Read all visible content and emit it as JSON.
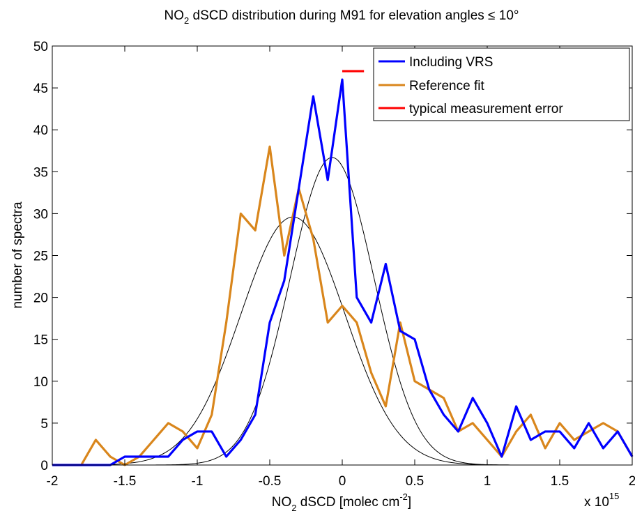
{
  "chart_data": {
    "type": "line",
    "title_main": "NO",
    "title_sub": "2",
    "title_rest": " dSCD distribution during M91 for elevation angles ≤ 10°",
    "xlabel_main": "NO",
    "xlabel_sub": "2",
    "xlabel_rest": " dSCD [molec cm",
    "xlabel_sup": "-2",
    "xlabel_end": "]",
    "x_multiplier_base": "x 10",
    "x_multiplier_exp": "15",
    "ylabel": "number of spectra",
    "xlim": [
      -2,
      2
    ],
    "ylim": [
      0,
      50
    ],
    "xticks": [
      -2,
      -1.5,
      -1,
      -0.5,
      0,
      0.5,
      1,
      1.5,
      2
    ],
    "xtick_labels": [
      "-2",
      "-1.5",
      "-1",
      "-0.5",
      "0",
      "0.5",
      "1",
      "1.5",
      "2"
    ],
    "yticks": [
      0,
      5,
      10,
      15,
      20,
      25,
      30,
      35,
      40,
      45,
      50
    ],
    "ytick_labels": [
      "0",
      "5",
      "10",
      "15",
      "20",
      "25",
      "30",
      "35",
      "40",
      "45",
      "50"
    ],
    "grid": false,
    "legend_position": "top-right",
    "series": [
      {
        "name": "Including VRS",
        "color": "#0000ff",
        "x": [
          -2.0,
          -1.9,
          -1.8,
          -1.7,
          -1.6,
          -1.5,
          -1.4,
          -1.3,
          -1.2,
          -1.1,
          -1.0,
          -0.9,
          -0.8,
          -0.7,
          -0.6,
          -0.5,
          -0.4,
          -0.3,
          -0.2,
          -0.1,
          0.0,
          0.1,
          0.2,
          0.3,
          0.4,
          0.5,
          0.6,
          0.7,
          0.8,
          0.9,
          1.0,
          1.1,
          1.2,
          1.3,
          1.4,
          1.5,
          1.6,
          1.7,
          1.8,
          1.9,
          2.0
        ],
        "y": [
          0,
          0,
          0,
          0,
          0,
          1,
          1,
          1,
          1,
          3,
          4,
          4,
          1,
          3,
          6,
          17,
          22,
          33,
          44,
          34,
          46,
          20,
          17,
          24,
          16,
          15,
          9,
          6,
          4,
          8,
          5,
          1,
          7,
          3,
          4,
          4,
          2,
          5,
          2,
          4,
          1
        ]
      },
      {
        "name": "Reference fit",
        "color": "#d9861c",
        "x": [
          -2.0,
          -1.9,
          -1.8,
          -1.7,
          -1.6,
          -1.5,
          -1.4,
          -1.3,
          -1.2,
          -1.1,
          -1.0,
          -0.9,
          -0.8,
          -0.7,
          -0.6,
          -0.5,
          -0.4,
          -0.3,
          -0.2,
          -0.1,
          0.0,
          0.1,
          0.2,
          0.3,
          0.4,
          0.5,
          0.6,
          0.7,
          0.8,
          0.9,
          1.0,
          1.1,
          1.2,
          1.3,
          1.4,
          1.5,
          1.6,
          1.7,
          1.8,
          1.9,
          2.0
        ],
        "y": [
          0,
          0,
          0,
          3,
          1,
          0,
          1,
          3,
          5,
          4,
          2,
          6,
          17,
          30,
          28,
          38,
          25,
          33,
          27,
          17,
          19,
          17,
          11,
          7,
          17,
          10,
          9,
          8,
          4,
          5,
          3,
          1,
          4,
          6,
          2,
          5,
          3,
          4,
          5,
          4,
          1
        ]
      },
      {
        "name": "typical measurement error",
        "color": "#ff0000",
        "x": [
          0.0,
          0.15
        ],
        "y": [
          47,
          47
        ]
      },
      {
        "color": "#000000",
        "gaussian": {
          "mean": -0.07,
          "sigma": 0.29,
          "amplitude": 36.7
        }
      },
      {
        "color": "#000000",
        "gaussian": {
          "mean": -0.34,
          "sigma": 0.36,
          "amplitude": 29.6
        }
      }
    ]
  }
}
